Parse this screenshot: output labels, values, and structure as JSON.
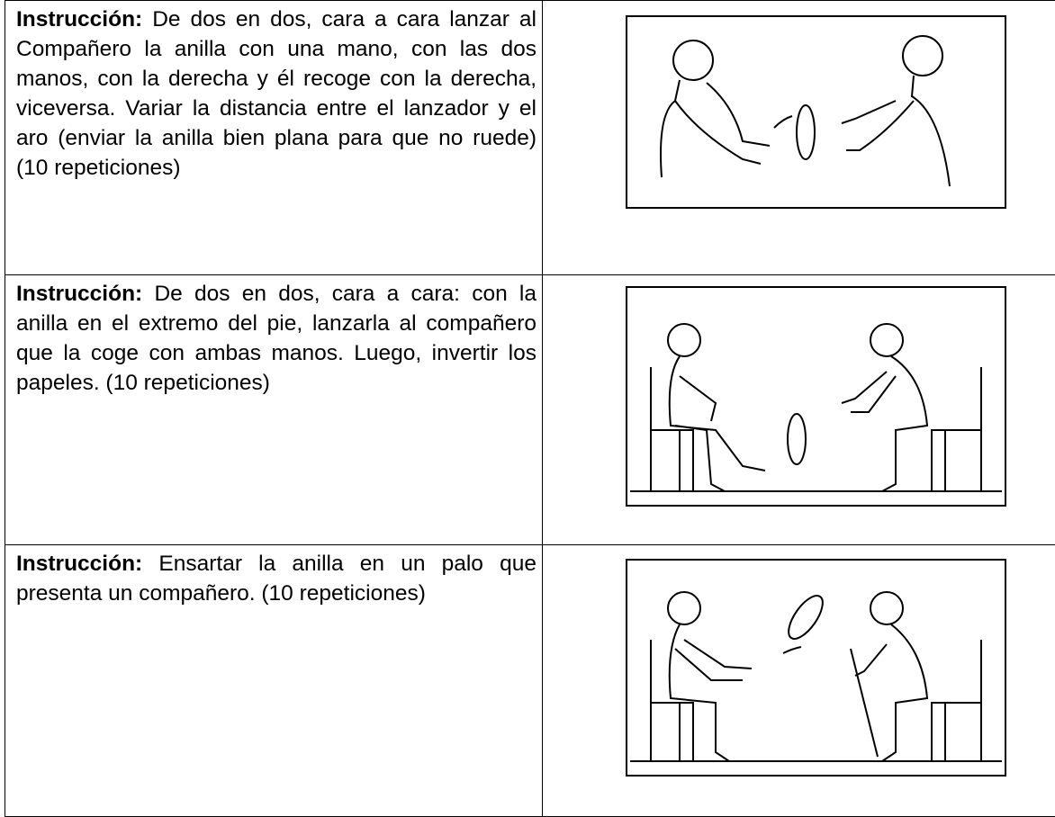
{
  "table": {
    "rows": [
      {
        "label": "Instrucción:",
        "text": "De dos en dos, cara a cara lanzar al Compañero la anilla con una mano, con las dos manos, con la derecha y él recoge con la derecha, viceversa. Variar la distancia entre el lanzador y el aro (enviar la anilla bien plana para que no ruede) (10 repeticiones)"
      },
      {
        "label": "Instrucción:",
        "text": "De dos en dos, cara a cara: con la anilla en el extremo del pie, lanzarla al compañero que la coge con ambas manos. Luego, invertir los papeles. (10 repeticiones)"
      },
      {
        "label": "Instrucción:",
        "text": "Ensartar la anilla en un palo que presenta un compañero. (10 repeticiones)"
      }
    ]
  }
}
